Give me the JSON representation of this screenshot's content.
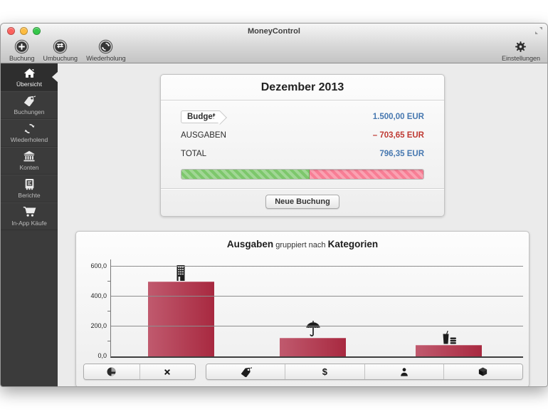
{
  "window": {
    "title": "MoneyControl"
  },
  "toolbar": {
    "buttons": [
      {
        "label": "Buchung",
        "icon": "add-circle"
      },
      {
        "label": "Umbuchung",
        "icon": "transfer-circle"
      },
      {
        "label": "Wiederholung",
        "icon": "repeat-circle"
      }
    ],
    "settings_label": "Einstellungen",
    "settings_icon": "gear"
  },
  "sidebar": {
    "items": [
      {
        "label": "Übersicht",
        "icon": "home",
        "selected": true
      },
      {
        "label": "Buchungen",
        "icon": "tag",
        "selected": false
      },
      {
        "label": "Wiederholend",
        "icon": "repeat",
        "selected": false
      },
      {
        "label": "Konten",
        "icon": "bank",
        "selected": false
      },
      {
        "label": "Berichte",
        "icon": "report",
        "selected": false
      },
      {
        "label": "In-App Käufe",
        "icon": "cart",
        "selected": false
      }
    ]
  },
  "summary": {
    "title": "Dezember 2013",
    "rows": [
      {
        "label": "Budget",
        "value": "1.500,00 EUR",
        "color": "#4778b0"
      },
      {
        "label": "AUSGABEN",
        "value": "– 703,65 EUR",
        "color": "#bf3a33"
      },
      {
        "label": "TOTAL",
        "value": "796,35 EUR",
        "color": "#4778b0"
      }
    ],
    "progress": {
      "green_pct": 53,
      "green_color": "#7dc76c",
      "pink_color": "#f87e95"
    },
    "button_label": "Neue Buchung"
  },
  "chart_panel": {
    "title_main": "Ausgaben",
    "title_mid": " gruppiert nach ",
    "title_end": "Kategorien"
  },
  "chart_data": {
    "type": "bar",
    "title": "Ausgaben gruppiert nach Kategorien",
    "categories": [
      "building",
      "umbrella",
      "fast-food"
    ],
    "values": [
      500,
      125,
      75
    ],
    "yticks": [
      0,
      200,
      400,
      600
    ],
    "tick_labels": [
      "0,0",
      "200,0",
      "400,0",
      "600,0"
    ],
    "minor_ticks": [
      100,
      300,
      500
    ],
    "ylim": [
      0,
      650
    ],
    "grid": true,
    "legend": false,
    "bar_color": "#b13049"
  },
  "chart_toolbar": {
    "left": [
      {
        "icon": "pie-chart"
      },
      {
        "icon": "plus"
      }
    ],
    "right": [
      {
        "icon": "tag"
      },
      {
        "icon": "dollar",
        "glyph": "$"
      },
      {
        "icon": "person"
      },
      {
        "icon": "package"
      }
    ]
  },
  "colors": {
    "sidebar_bg": "#3b3b3b",
    "content_bg": "#ebebeb",
    "blue_amount": "#4778b0",
    "red_amount": "#bf3a33",
    "bar_red": "#b13049",
    "progress_green": "#7dc76c",
    "progress_pink": "#f87e95",
    "traffic_red": "#fc615d",
    "traffic_yellow": "#fdbc40",
    "traffic_green": "#34c749"
  }
}
